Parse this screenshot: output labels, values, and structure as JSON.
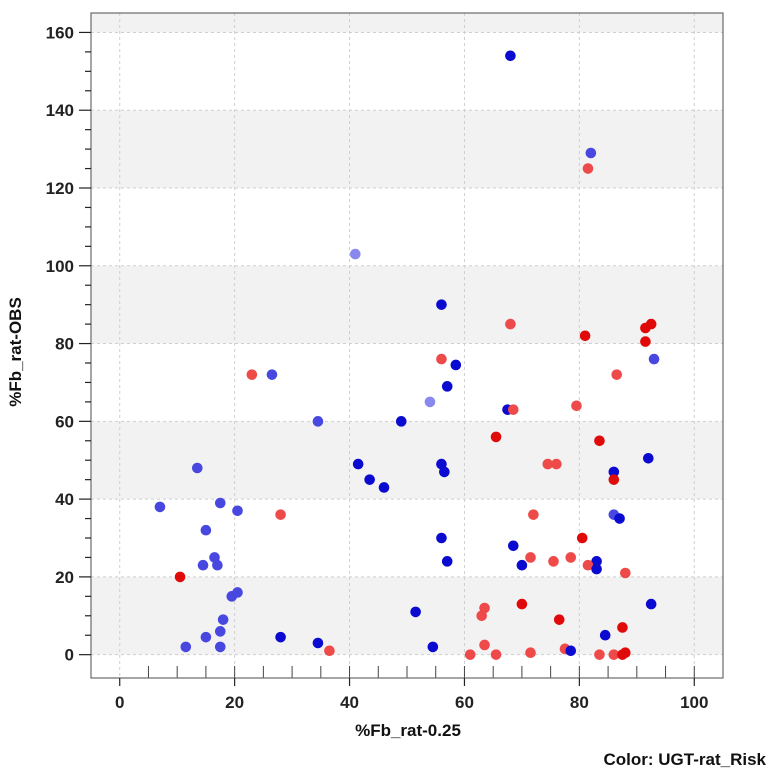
{
  "chart_data": {
    "type": "scatter",
    "xlabel": "%Fb_rat-0.25",
    "ylabel": "%Fb_rat-OBS",
    "color_caption": "Color: UGT-rat_Risk",
    "xlim": [
      -5,
      105
    ],
    "ylim": [
      -6,
      165
    ],
    "xticks": [
      0,
      20,
      40,
      60,
      80,
      100
    ],
    "yticks": [
      0,
      20,
      40,
      60,
      80,
      100,
      120,
      140,
      160
    ],
    "grid": true,
    "banding": "alternating light-gray horizontal bands every 20 units",
    "colors": {
      "plot_bg": "#ffffff",
      "band": "#f2f2f2",
      "grid": "#cfcfcf",
      "blue": "#0a0ad0",
      "mid_blue": "#4848e0",
      "light_blue": "#8888ee",
      "red": "#e00a0a",
      "light_red": "#ee4a4a"
    },
    "points": [
      {
        "x": 68,
        "y": 154,
        "c": "blue"
      },
      {
        "x": 82,
        "y": 129,
        "c": "mid_blue"
      },
      {
        "x": 81.5,
        "y": 125,
        "c": "light_red"
      },
      {
        "x": 41,
        "y": 103,
        "c": "light_blue"
      },
      {
        "x": 56,
        "y": 90,
        "c": "blue"
      },
      {
        "x": 68,
        "y": 85,
        "c": "light_red"
      },
      {
        "x": 92.5,
        "y": 85,
        "c": "red"
      },
      {
        "x": 91.5,
        "y": 84,
        "c": "red"
      },
      {
        "x": 81,
        "y": 82,
        "c": "red"
      },
      {
        "x": 91.5,
        "y": 80.5,
        "c": "red"
      },
      {
        "x": 93,
        "y": 76,
        "c": "mid_blue"
      },
      {
        "x": 56,
        "y": 76,
        "c": "light_red"
      },
      {
        "x": 58.5,
        "y": 74.5,
        "c": "blue"
      },
      {
        "x": 23,
        "y": 72,
        "c": "light_red"
      },
      {
        "x": 26.5,
        "y": 72,
        "c": "mid_blue"
      },
      {
        "x": 86.5,
        "y": 72,
        "c": "light_red"
      },
      {
        "x": 57,
        "y": 69,
        "c": "blue"
      },
      {
        "x": 54,
        "y": 65,
        "c": "light_blue"
      },
      {
        "x": 79.5,
        "y": 64,
        "c": "light_red"
      },
      {
        "x": 67.5,
        "y": 63,
        "c": "blue"
      },
      {
        "x": 68.5,
        "y": 63,
        "c": "light_red"
      },
      {
        "x": 34.5,
        "y": 60,
        "c": "mid_blue"
      },
      {
        "x": 49,
        "y": 60,
        "c": "blue"
      },
      {
        "x": 65.5,
        "y": 56,
        "c": "red"
      },
      {
        "x": 83.5,
        "y": 55,
        "c": "red"
      },
      {
        "x": 92,
        "y": 50.5,
        "c": "blue"
      },
      {
        "x": 41.5,
        "y": 49,
        "c": "blue"
      },
      {
        "x": 56,
        "y": 49,
        "c": "blue"
      },
      {
        "x": 74.5,
        "y": 49,
        "c": "light_red"
      },
      {
        "x": 76,
        "y": 49,
        "c": "light_red"
      },
      {
        "x": 13.5,
        "y": 48,
        "c": "mid_blue"
      },
      {
        "x": 56.5,
        "y": 47,
        "c": "blue"
      },
      {
        "x": 86,
        "y": 47,
        "c": "blue"
      },
      {
        "x": 43.5,
        "y": 45,
        "c": "blue"
      },
      {
        "x": 86,
        "y": 45,
        "c": "red"
      },
      {
        "x": 46,
        "y": 43,
        "c": "blue"
      },
      {
        "x": 17.5,
        "y": 39,
        "c": "mid_blue"
      },
      {
        "x": 7,
        "y": 38,
        "c": "mid_blue"
      },
      {
        "x": 20.5,
        "y": 37,
        "c": "mid_blue"
      },
      {
        "x": 28,
        "y": 36,
        "c": "light_red"
      },
      {
        "x": 72,
        "y": 36,
        "c": "light_red"
      },
      {
        "x": 86,
        "y": 36,
        "c": "mid_blue"
      },
      {
        "x": 87,
        "y": 35,
        "c": "blue"
      },
      {
        "x": 15,
        "y": 32,
        "c": "mid_blue"
      },
      {
        "x": 56,
        "y": 30,
        "c": "blue"
      },
      {
        "x": 80.5,
        "y": 30,
        "c": "red"
      },
      {
        "x": 68.5,
        "y": 28,
        "c": "blue"
      },
      {
        "x": 16.5,
        "y": 25,
        "c": "mid_blue"
      },
      {
        "x": 71.5,
        "y": 25,
        "c": "light_red"
      },
      {
        "x": 78.5,
        "y": 25,
        "c": "light_red"
      },
      {
        "x": 57,
        "y": 24,
        "c": "blue"
      },
      {
        "x": 75.5,
        "y": 24,
        "c": "light_red"
      },
      {
        "x": 83,
        "y": 24,
        "c": "blue"
      },
      {
        "x": 14.5,
        "y": 23,
        "c": "mid_blue"
      },
      {
        "x": 17,
        "y": 23,
        "c": "mid_blue"
      },
      {
        "x": 70,
        "y": 23,
        "c": "blue"
      },
      {
        "x": 81.5,
        "y": 23,
        "c": "light_red"
      },
      {
        "x": 83,
        "y": 22,
        "c": "blue"
      },
      {
        "x": 88,
        "y": 21,
        "c": "light_red"
      },
      {
        "x": 10.5,
        "y": 20,
        "c": "red"
      },
      {
        "x": 20.5,
        "y": 16,
        "c": "mid_blue"
      },
      {
        "x": 19.5,
        "y": 15,
        "c": "mid_blue"
      },
      {
        "x": 70,
        "y": 13,
        "c": "red"
      },
      {
        "x": 92.5,
        "y": 13,
        "c": "blue"
      },
      {
        "x": 63.5,
        "y": 12,
        "c": "light_red"
      },
      {
        "x": 51.5,
        "y": 11,
        "c": "blue"
      },
      {
        "x": 63,
        "y": 10,
        "c": "light_red"
      },
      {
        "x": 18,
        "y": 9,
        "c": "mid_blue"
      },
      {
        "x": 76.5,
        "y": 9,
        "c": "red"
      },
      {
        "x": 87.5,
        "y": 7,
        "c": "red"
      },
      {
        "x": 17.5,
        "y": 6,
        "c": "mid_blue"
      },
      {
        "x": 84.5,
        "y": 5,
        "c": "blue"
      },
      {
        "x": 15,
        "y": 4.5,
        "c": "mid_blue"
      },
      {
        "x": 28,
        "y": 4.5,
        "c": "blue"
      },
      {
        "x": 34.5,
        "y": 3,
        "c": "blue"
      },
      {
        "x": 63.5,
        "y": 2.5,
        "c": "light_red"
      },
      {
        "x": 11.5,
        "y": 2,
        "c": "mid_blue"
      },
      {
        "x": 17.5,
        "y": 2,
        "c": "mid_blue"
      },
      {
        "x": 54.5,
        "y": 2,
        "c": "blue"
      },
      {
        "x": 77.5,
        "y": 1.5,
        "c": "light_red"
      },
      {
        "x": 36.5,
        "y": 1,
        "c": "light_red"
      },
      {
        "x": 78.5,
        "y": 1,
        "c": "blue"
      },
      {
        "x": 71.5,
        "y": 0.5,
        "c": "light_red"
      },
      {
        "x": 88,
        "y": 0.5,
        "c": "red"
      },
      {
        "x": 61,
        "y": 0,
        "c": "light_red"
      },
      {
        "x": 65.5,
        "y": 0,
        "c": "light_red"
      },
      {
        "x": 83.5,
        "y": 0,
        "c": "light_red"
      },
      {
        "x": 86,
        "y": 0,
        "c": "light_red"
      },
      {
        "x": 87.5,
        "y": 0,
        "c": "red"
      }
    ]
  }
}
